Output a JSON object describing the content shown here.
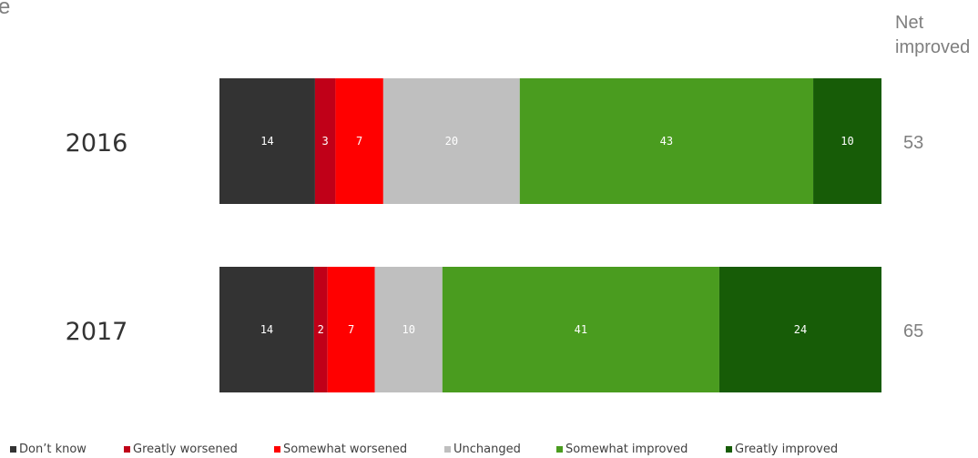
{
  "corner_fragment": "e",
  "net_header": [
    "Net",
    "improved"
  ],
  "chart_data": {
    "type": "bar",
    "orientation": "horizontal",
    "stacked": true,
    "xlim": [
      0,
      100
    ],
    "grid": false,
    "legend_placement": "bottom",
    "categories": [
      "2016",
      "2017"
    ],
    "series": [
      {
        "name": "Don’t know",
        "color": "#333333",
        "label_color": "#ffffff",
        "values": [
          14,
          14
        ]
      },
      {
        "name": "Greatly worsened",
        "color": "#c00018",
        "label_color": "#ffffff",
        "values": [
          3,
          2
        ]
      },
      {
        "name": "Somewhat worsened",
        "color": "#ff0000",
        "label_color": "#ffffff",
        "values": [
          7,
          7
        ]
      },
      {
        "name": "Unchanged",
        "color": "#bfbfbf",
        "label_color": "#ffffff",
        "values": [
          20,
          10
        ]
      },
      {
        "name": "Somewhat improved",
        "color": "#4a9c1f",
        "label_color": "#ffffff",
        "values": [
          43,
          41
        ]
      },
      {
        "name": "Greatly improved",
        "color": "#175c07",
        "label_color": "#ffffff",
        "values": [
          10,
          24
        ]
      }
    ],
    "net_improved": [
      "53",
      "65"
    ]
  }
}
